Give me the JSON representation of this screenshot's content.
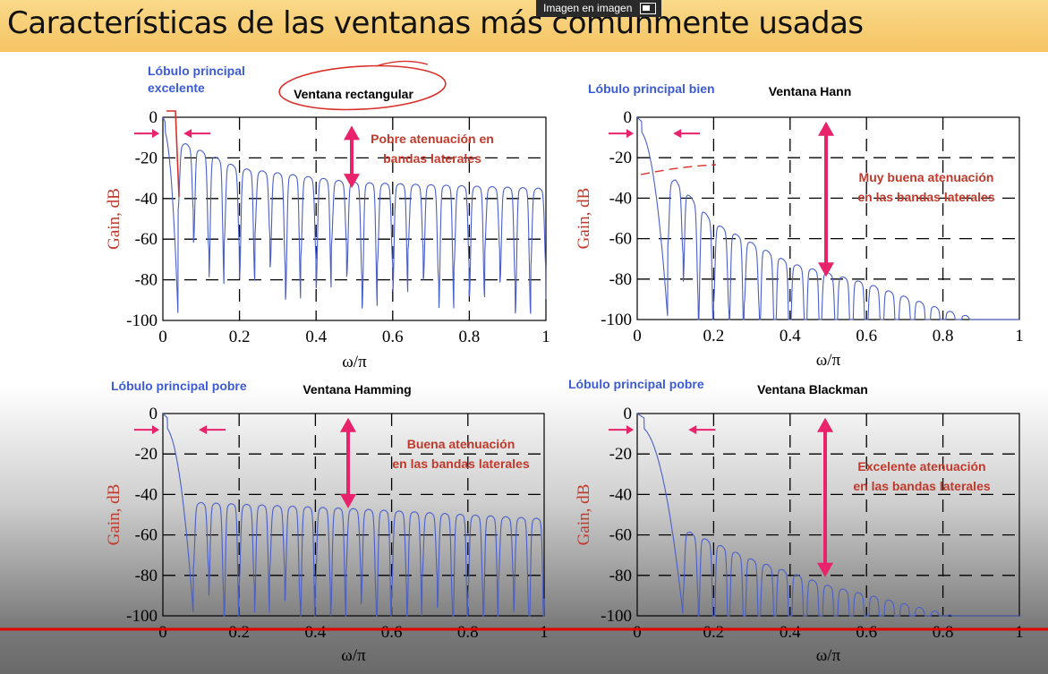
{
  "header": {
    "title": "Características de las ventanas más comunmente usadas"
  },
  "overlay": {
    "pip_label": "Imagen en imagen"
  },
  "colors": {
    "curve": "#4a5fc9",
    "arrow": "#e8236b",
    "note": "#c0392b",
    "lobe": "#3b5bd6",
    "redline": "#e00000"
  },
  "chart_data": [
    {
      "type": "line",
      "title": "Ventana rectangular",
      "lobe_note": [
        "Lóbulo principal",
        "excelente"
      ],
      "attenuation_note": [
        "Pobre atenuación en",
        "bandas laterales"
      ],
      "xlabel": "ω/π",
      "ylabel": "Gain, dB",
      "xlim": [
        0,
        1
      ],
      "ylim": [
        -100,
        0
      ],
      "xticks": [
        "0",
        "0.2",
        "0.4",
        "0.6",
        "0.8",
        "1"
      ],
      "yticks": [
        "0",
        "-20",
        "-40",
        "-60",
        "-80",
        "-100"
      ],
      "grid": true,
      "mainlobe_null": 0.04,
      "sidelobe_spacing": 0.04,
      "sidelobe_peaks_db": [
        [
          0.06,
          -13
        ],
        [
          0.2,
          -25
        ],
        [
          0.5,
          -32
        ],
        [
          1.0,
          -35
        ]
      ],
      "arrow_db": [
        -5,
        -34
      ]
    },
    {
      "type": "line",
      "title": "Ventana Hann",
      "lobe_note": [
        "Lóbulo principal bien"
      ],
      "attenuation_note": [
        "Muy buena atenuación",
        "en las bandas laterales"
      ],
      "xlabel": "ω/π",
      "ylabel": "Gain, dB",
      "xlim": [
        0,
        1
      ],
      "ylim": [
        -100,
        0
      ],
      "xticks": [
        "0",
        "0.2",
        "0.4",
        "0.6",
        "0.8",
        "1"
      ],
      "yticks": [
        "0",
        "-20",
        "-40",
        "-60",
        "-80",
        "-100"
      ],
      "grid": true,
      "mainlobe_null": 0.08,
      "sidelobe_spacing": 0.04,
      "sidelobe_peaks_db": [
        [
          0.1,
          -31
        ],
        [
          0.2,
          -52
        ],
        [
          0.4,
          -72
        ],
        [
          0.6,
          -82
        ],
        [
          0.8,
          -95
        ],
        [
          0.9,
          -100
        ]
      ],
      "arrow_db": [
        -3,
        -78
      ]
    },
    {
      "type": "line",
      "title": "Ventana Hamming",
      "lobe_note": [
        "Lóbulo principal pobre"
      ],
      "attenuation_note": [
        "Buena atenuación",
        "en las bandas laterales"
      ],
      "xlabel": "ω/π",
      "ylabel": "Gain, dB",
      "xlim": [
        0,
        1
      ],
      "ylim": [
        -100,
        0
      ],
      "xticks": [
        "0",
        "0.2",
        "0.4",
        "0.6",
        "0.8",
        "1"
      ],
      "yticks": [
        "0",
        "-20",
        "-40",
        "-60",
        "-80",
        "-100"
      ],
      "grid": true,
      "mainlobe_null": 0.08,
      "sidelobe_spacing": 0.04,
      "sidelobe_peaks_db": [
        [
          0.1,
          -44
        ],
        [
          0.5,
          -47
        ],
        [
          1.0,
          -52
        ]
      ],
      "arrow_db": [
        -3,
        -46
      ]
    },
    {
      "type": "line",
      "title": "Ventana Blackman",
      "lobe_note": [
        "Lóbulo principal pobre"
      ],
      "attenuation_note": [
        "Excelente atenuación",
        "en las bandas laterales"
      ],
      "xlabel": "ω/π",
      "ylabel": "Gain, dB",
      "xlim": [
        0,
        1
      ],
      "ylim": [
        -100,
        0
      ],
      "xticks": [
        "0",
        "0.2",
        "0.4",
        "0.6",
        "0.8",
        "1"
      ],
      "yticks": [
        "0",
        "-20",
        "-40",
        "-60",
        "-80",
        "-100"
      ],
      "grid": true,
      "mainlobe_null": 0.12,
      "sidelobe_spacing": 0.04,
      "sidelobe_peaks_db": [
        [
          0.13,
          -58
        ],
        [
          0.3,
          -72
        ],
        [
          0.5,
          -85
        ],
        [
          0.7,
          -94
        ],
        [
          0.83,
          -100
        ]
      ],
      "arrow_db": [
        -3,
        -80
      ]
    }
  ]
}
